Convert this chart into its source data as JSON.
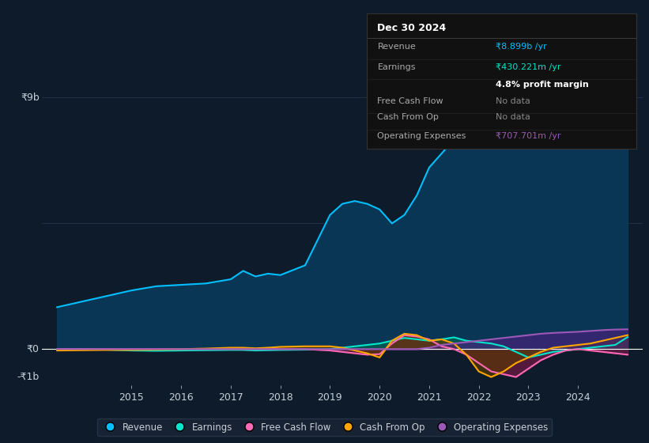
{
  "bg_color": "#0d1b2a",
  "plot_bg_color": "#0d1b2a",
  "grid_color": "#2a3a4a",
  "text_color": "#c8d0d8",
  "ylabel_9b": "₹9b",
  "ylabel_0": "₹0",
  "ylabel_neg1b": "-₹1b",
  "years": [
    2013.5,
    2014,
    2014.5,
    2015,
    2015.5,
    2016,
    2016.5,
    2017,
    2017.25,
    2017.5,
    2017.75,
    2018,
    2018.5,
    2019,
    2019.25,
    2019.5,
    2019.75,
    2020,
    2020.25,
    2020.5,
    2020.75,
    2021,
    2021.25,
    2021.5,
    2021.75,
    2022,
    2022.25,
    2022.5,
    2022.75,
    2023,
    2023.25,
    2023.5,
    2023.75,
    2024,
    2024.25,
    2024.5,
    2024.75,
    2025
  ],
  "revenue": [
    1500000000,
    1700000000,
    1900000000,
    2100000000,
    2250000000,
    2300000000,
    2350000000,
    2500000000,
    2800000000,
    2600000000,
    2700000000,
    2650000000,
    3000000000,
    4800000000,
    5200000000,
    5300000000,
    5200000000,
    5000000000,
    4500000000,
    4800000000,
    5500000000,
    6500000000,
    7000000000,
    7500000000,
    8000000000,
    8500000000,
    8700000000,
    8400000000,
    8200000000,
    7800000000,
    7900000000,
    8000000000,
    8200000000,
    8500000000,
    8700000000,
    8850000000,
    8899000000,
    8899000000
  ],
  "earnings": [
    0,
    0,
    -20000000,
    -50000000,
    -60000000,
    -50000000,
    -40000000,
    -30000000,
    -30000000,
    -50000000,
    -40000000,
    -30000000,
    -20000000,
    0,
    50000000,
    100000000,
    150000000,
    200000000,
    300000000,
    400000000,
    350000000,
    300000000,
    350000000,
    420000000,
    300000000,
    250000000,
    200000000,
    100000000,
    -100000000,
    -300000000,
    -200000000,
    -100000000,
    -50000000,
    0,
    50000000,
    100000000,
    150000000,
    430000000
  ],
  "free_cash_flow": [
    0,
    0,
    0,
    0,
    0,
    0,
    0,
    0,
    0,
    0,
    0,
    0,
    0,
    -50000000,
    -100000000,
    -150000000,
    -200000000,
    -180000000,
    200000000,
    500000000,
    450000000,
    350000000,
    100000000,
    0,
    -200000000,
    -500000000,
    -800000000,
    -900000000,
    -1000000000,
    -700000000,
    -400000000,
    -200000000,
    -50000000,
    0,
    -50000000,
    -100000000,
    -150000000,
    -200000000
  ],
  "cash_from_op": [
    -50000000,
    -40000000,
    -30000000,
    -30000000,
    -20000000,
    0,
    20000000,
    50000000,
    50000000,
    30000000,
    50000000,
    80000000,
    100000000,
    100000000,
    50000000,
    -50000000,
    -150000000,
    -300000000,
    300000000,
    550000000,
    500000000,
    300000000,
    350000000,
    200000000,
    -200000000,
    -800000000,
    -1000000000,
    -800000000,
    -500000000,
    -300000000,
    -100000000,
    50000000,
    100000000,
    150000000,
    200000000,
    300000000,
    400000000,
    500000000
  ],
  "op_expenses": [
    0,
    0,
    0,
    0,
    0,
    0,
    0,
    0,
    0,
    0,
    0,
    0,
    0,
    0,
    0,
    0,
    0,
    0,
    0,
    0,
    0,
    50000000,
    150000000,
    200000000,
    250000000,
    300000000,
    350000000,
    400000000,
    450000000,
    500000000,
    550000000,
    580000000,
    600000000,
    620000000,
    650000000,
    680000000,
    700000000,
    707700000
  ],
  "revenue_color": "#00bfff",
  "earnings_color": "#00e5cc",
  "free_cash_flow_color": "#ff69b4",
  "cash_from_op_color": "#ffa500",
  "op_expenses_color": "#9b59b6",
  "revenue_fill": "#0a3a5a",
  "earnings_fill": "#006050",
  "free_cash_flow_fill": "#7b1a4a",
  "cash_from_op_fill": "#5a3a00",
  "op_expenses_fill": "#4a2080",
  "tooltip_bg": "#111111",
  "tooltip_border": "#333333",
  "tooltip_title": "Dec 30 2024",
  "tooltip_revenue_label": "Revenue",
  "tooltip_revenue_value": "₹8.899b /yr",
  "tooltip_earnings_label": "Earnings",
  "tooltip_earnings_value": "₹430.221m /yr",
  "tooltip_margin": "4.8% profit margin",
  "tooltip_fcf_label": "Free Cash Flow",
  "tooltip_fcf_value": "No data",
  "tooltip_cfo_label": "Cash From Op",
  "tooltip_cfo_value": "No data",
  "tooltip_opex_label": "Operating Expenses",
  "tooltip_opex_value": "₹707.701m /yr",
  "legend_items": [
    "Revenue",
    "Earnings",
    "Free Cash Flow",
    "Cash From Op",
    "Operating Expenses"
  ],
  "legend_colors": [
    "#00bfff",
    "#00e5cc",
    "#ff69b4",
    "#ffa500",
    "#9b59b6"
  ],
  "ylim_min": -1300000000,
  "ylim_max": 9800000000,
  "xlim_min": 2013.2,
  "xlim_max": 2025.3
}
